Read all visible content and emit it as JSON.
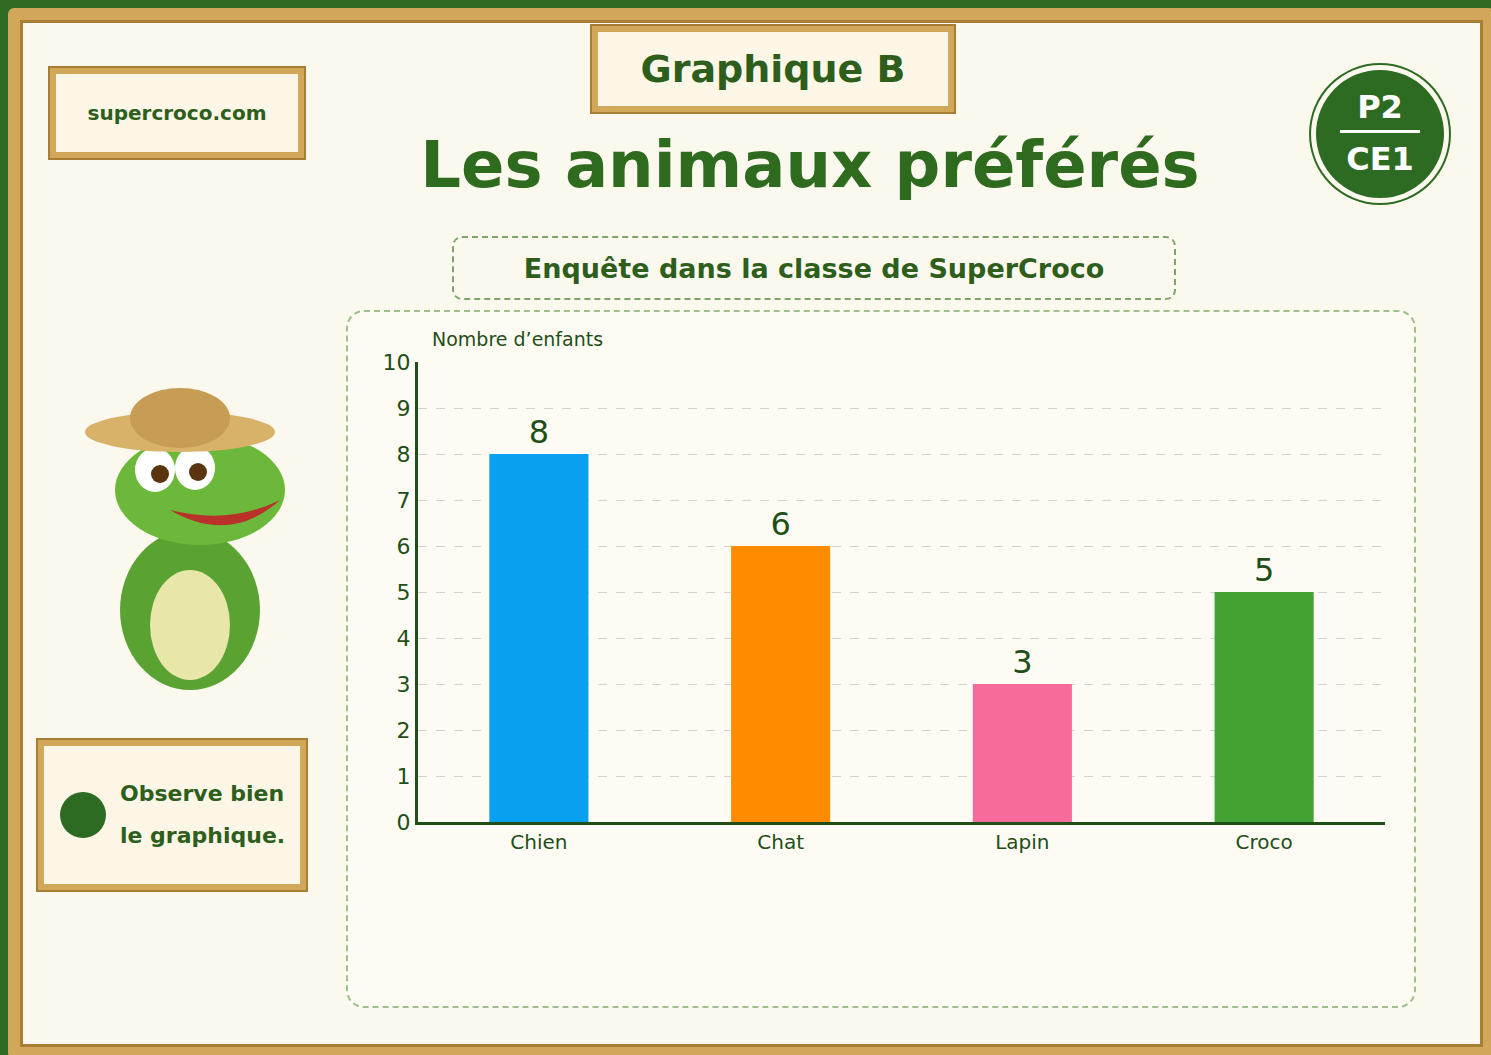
{
  "chart_data": {
    "type": "bar",
    "title": "Les animaux préférés",
    "subtitle": "Enquête dans la classe de SuperCroco",
    "y_label": "Nombre d’enfants",
    "categories": [
      "Chien",
      "Chat",
      "Lapin",
      "Croco"
    ],
    "values": [
      8,
      6,
      3,
      5
    ],
    "colors": [
      "#0aa0f0",
      "#ff8c00",
      "#f76b9a",
      "#43a232"
    ],
    "ylim": [
      0,
      10
    ],
    "yticks": [
      0,
      1,
      2,
      3,
      4,
      5,
      6,
      7,
      8,
      9,
      10
    ],
    "grid": true,
    "data_labels": true
  },
  "page": {
    "badge": "Graphique B",
    "website": "supercroco.com",
    "level": [
      "P2",
      "CE1"
    ],
    "tip": "Observe bien le graphique."
  }
}
